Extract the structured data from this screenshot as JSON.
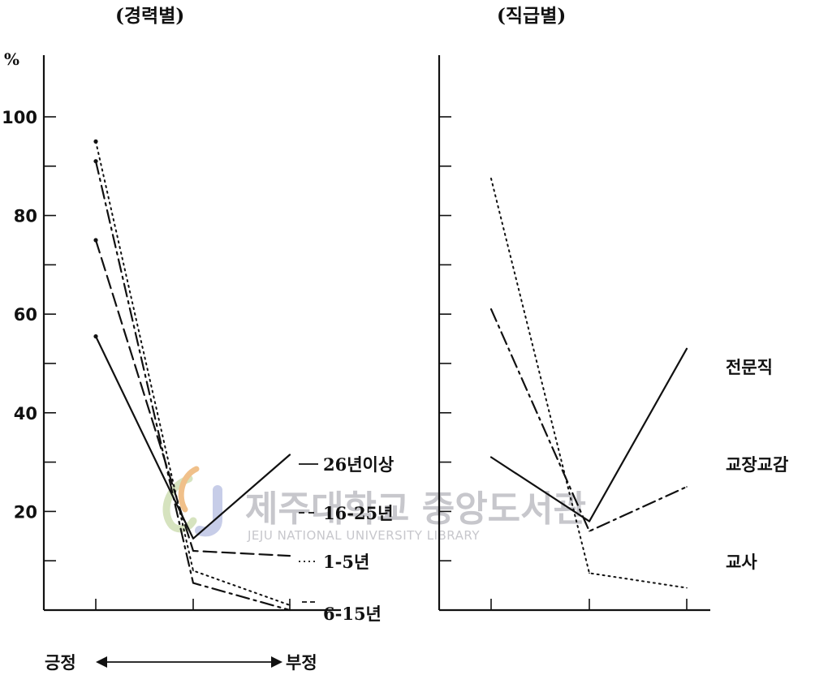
{
  "chart_data": [
    {
      "type": "line",
      "title": "(경력별)",
      "y_unit_label": "%",
      "ylim": [
        0,
        110
      ],
      "yticks": [
        20,
        40,
        60,
        80,
        100
      ],
      "ytick_labels": [
        "20",
        "40",
        "60",
        "80",
        "100"
      ],
      "categories": [
        "긍정",
        "",
        "부정"
      ],
      "axis_caption": {
        "left": "긍정",
        "right": "부정"
      },
      "series": [
        {
          "name": "26년이상",
          "style": "solid",
          "values": [
            55.5,
            14.5,
            31.5
          ]
        },
        {
          "name": "16-25년",
          "style": "dashed",
          "values": [
            75,
            12,
            11
          ]
        },
        {
          "name": "1-5년",
          "style": "dotted",
          "values": [
            95,
            8,
            1
          ]
        },
        {
          "name": "6-15년",
          "style": "dashdot",
          "values": [
            91,
            5.5,
            0
          ]
        }
      ]
    },
    {
      "type": "line",
      "title": "(직급별)",
      "ylim": [
        0,
        110
      ],
      "yticks": [
        10,
        20,
        30,
        40,
        50,
        60,
        70,
        80,
        90,
        100
      ],
      "categories": [
        "",
        "",
        ""
      ],
      "series": [
        {
          "name": "전문직",
          "style": "solid",
          "values": [
            31,
            18,
            53
          ]
        },
        {
          "name": "교장교감",
          "style": "dashdot",
          "values": [
            61,
            16,
            25
          ]
        },
        {
          "name": "교사",
          "style": "dotted",
          "values": [
            87.5,
            7.5,
            4.5
          ]
        }
      ]
    }
  ],
  "watermark": {
    "korean": "제주대학교 중앙도서관",
    "english": "JEJU NATIONAL UNIVERSITY LIBRARY"
  },
  "colors": {
    "ink": "#111111",
    "watermark": "#c7c7cc"
  }
}
